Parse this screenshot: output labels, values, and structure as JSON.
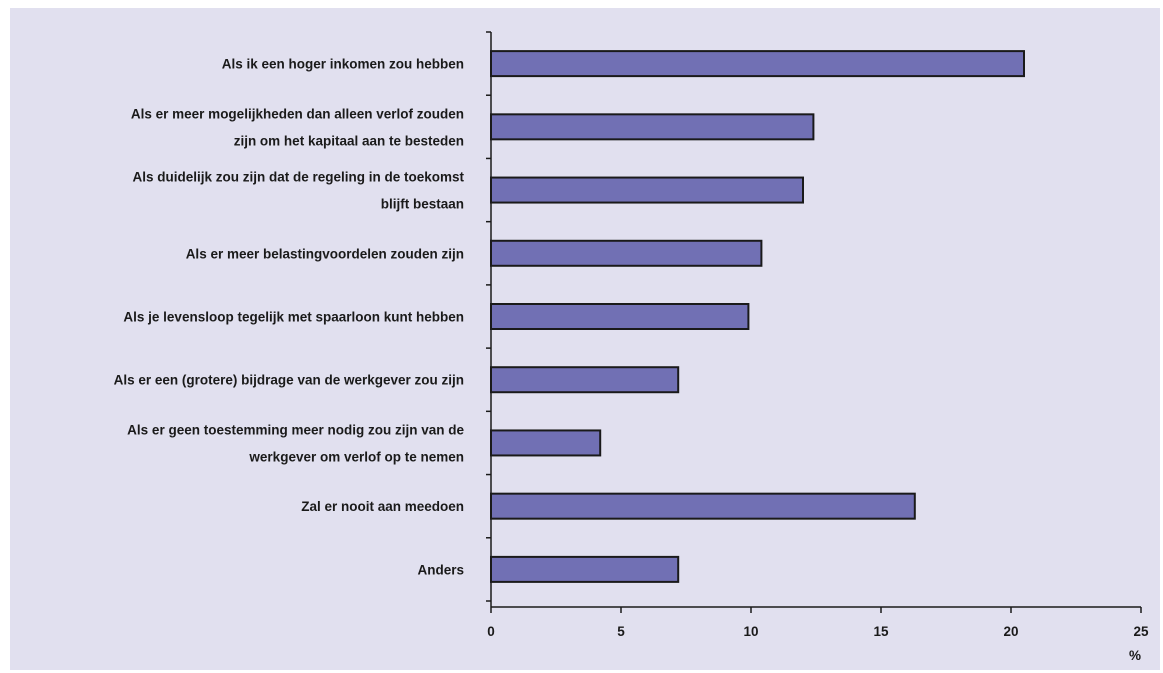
{
  "chart_data": {
    "type": "bar",
    "orientation": "horizontal",
    "categories": [
      [
        "Als ik een hoger inkomen zou hebben"
      ],
      [
        "Als er meer mogelijkheden dan alleen verlof zouden",
        "zijn om het kapitaal aan te besteden"
      ],
      [
        "Als duidelijk zou zijn dat de regeling in de toekomst",
        "blijft bestaan"
      ],
      [
        "Als er meer belastingvoordelen zouden zijn"
      ],
      [
        "Als je levensloop tegelijk met spaarloon kunt hebben"
      ],
      [
        "Als er een (grotere) bijdrage van de werkgever zou zijn"
      ],
      [
        "Als er geen toestemming meer nodig zou zijn van de",
        "werkgever om verlof op te nemen"
      ],
      [
        "Zal er nooit aan meedoen"
      ],
      [
        "Anders"
      ]
    ],
    "values": [
      20.5,
      12.4,
      12.0,
      10.4,
      9.9,
      7.2,
      4.2,
      16.3,
      7.2
    ],
    "xlim": [
      0,
      25
    ],
    "xticks": [
      "0",
      "5",
      "10",
      "15",
      "20",
      "25"
    ],
    "xlabel": "%",
    "title": "",
    "ylabel": "",
    "grid": false,
    "legend": "none",
    "colors": {
      "bar": "#7170b4",
      "bar_stroke": "#1a1a1a",
      "background": "#e1e0ef"
    }
  }
}
